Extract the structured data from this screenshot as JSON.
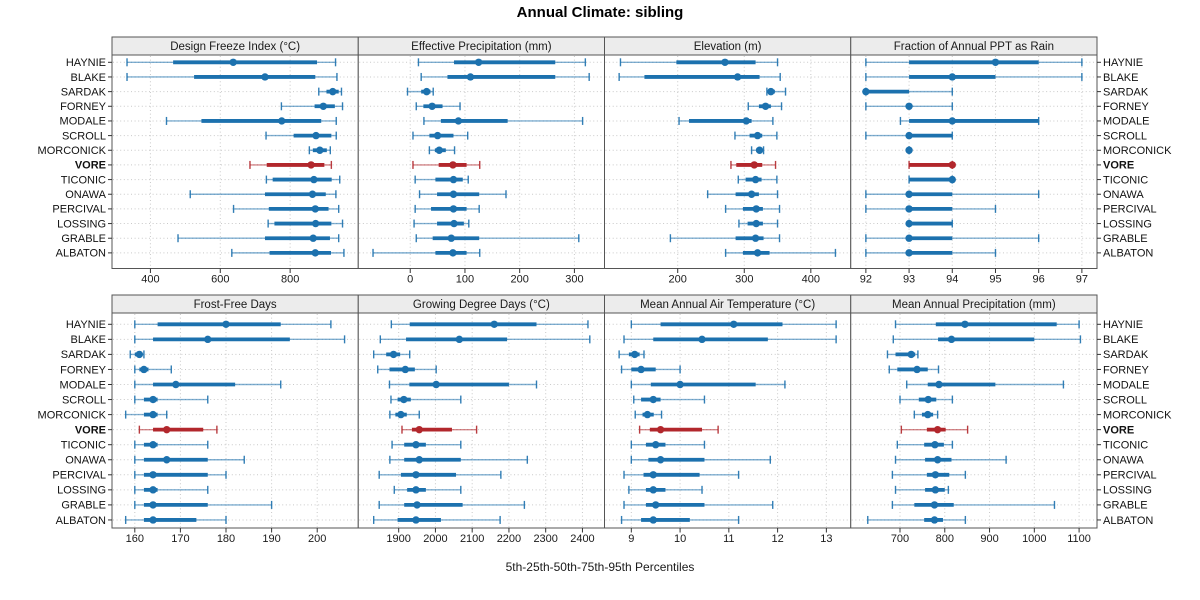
{
  "chart_data": {
    "type": "percentile-dotplot",
    "title": "Annual Climate: sibling",
    "caption": "5th-25th-50th-75th-95th Percentiles",
    "percentiles_shown": [
      5,
      25,
      50,
      75,
      95
    ],
    "sites": [
      "HAYNIE",
      "BLAKE",
      "SARDAK",
      "FORNEY",
      "MODALE",
      "SCROLL",
      "MORCONICK",
      "VORE",
      "TICONIC",
      "ONAWA",
      "PERCIVAL",
      "LOSSING",
      "GRABLE",
      "ALBATON"
    ],
    "highlight_site": "VORE",
    "legend_position": "none",
    "grid": "dotted",
    "colors": {
      "series": "#1c71ae",
      "highlight": "#b2272c",
      "strip_bg": "#ececec",
      "grid": "#c9c9c9",
      "border": "#555555",
      "text": "#1a1a1a"
    },
    "panels": [
      {
        "title": "Design Freeze Index (°C)",
        "row": 0,
        "col": 0,
        "xlim": [
          290,
          995
        ],
        "ticks": [
          400,
          600,
          800
        ],
        "values": [
          [
            333,
            465,
            637,
            877,
            930
          ],
          [
            333,
            525,
            728,
            872,
            934
          ],
          [
            882,
            904,
            922,
            939,
            947
          ],
          [
            775,
            870,
            895,
            928,
            950
          ],
          [
            446,
            546,
            776,
            889,
            932
          ],
          [
            731,
            810,
            874,
            918,
            932
          ],
          [
            855,
            865,
            885,
            905,
            915
          ],
          [
            685,
            733,
            860,
            898,
            918
          ],
          [
            732,
            750,
            868,
            919,
            942
          ],
          [
            514,
            728,
            864,
            902,
            931
          ],
          [
            638,
            739,
            872,
            910,
            939
          ],
          [
            737,
            755,
            873,
            918,
            950
          ],
          [
            479,
            728,
            866,
            914,
            939
          ],
          [
            633,
            741,
            872,
            917,
            954
          ]
        ]
      },
      {
        "title": "Effective Precipitation (mm)",
        "row": 0,
        "col": 1,
        "xlim": [
          -95,
          355
        ],
        "ticks": [
          0,
          100,
          200,
          300
        ],
        "values": [
          [
            15,
            80,
            125,
            265,
            320
          ],
          [
            20,
            68,
            110,
            265,
            327
          ],
          [
            -5,
            20,
            30,
            37,
            42
          ],
          [
            11,
            24,
            40,
            59,
            91
          ],
          [
            25,
            56,
            88,
            178,
            315
          ],
          [
            5,
            35,
            50,
            79,
            105
          ],
          [
            35,
            45,
            53,
            65,
            81
          ],
          [
            5,
            52,
            78,
            103,
            127
          ],
          [
            9,
            46,
            79,
            96,
            106
          ],
          [
            17,
            49,
            79,
            126,
            175
          ],
          [
            9,
            38,
            79,
            103,
            126
          ],
          [
            7,
            49,
            80,
            98,
            107
          ],
          [
            11,
            41,
            75,
            126,
            308
          ],
          [
            -68,
            46,
            78,
            103,
            127
          ]
        ]
      },
      {
        "title": "Elevation (m)",
        "row": 0,
        "col": 2,
        "xlim": [
          90,
          460
        ],
        "ticks": [
          200,
          300,
          400
        ],
        "values": [
          [
            114,
            198,
            271,
            317,
            350
          ],
          [
            112,
            150,
            290,
            323,
            354
          ],
          [
            334,
            337,
            340,
            346,
            362
          ],
          [
            306,
            322,
            332,
            340,
            356
          ],
          [
            202,
            217,
            303,
            311,
            343
          ],
          [
            286,
            308,
            320,
            327,
            349
          ],
          [
            311,
            318,
            323,
            326,
            329
          ],
          [
            280,
            288,
            315,
            327,
            347
          ],
          [
            291,
            302,
            317,
            326,
            349
          ],
          [
            245,
            287,
            311,
            322,
            350
          ],
          [
            272,
            298,
            318,
            328,
            353
          ],
          [
            292,
            305,
            318,
            328,
            350
          ],
          [
            189,
            287,
            317,
            329,
            353
          ],
          [
            272,
            298,
            320,
            338,
            437
          ]
        ]
      },
      {
        "title": "Fraction of Annual PPT as Rain",
        "row": 0,
        "col": 3,
        "xlim": [
          91.65,
          97.35
        ],
        "ticks": [
          92,
          93,
          94,
          95,
          96,
          97
        ],
        "values": [
          [
            92,
            93,
            95,
            96,
            97
          ],
          [
            92,
            93,
            94,
            95,
            97
          ],
          [
            92,
            92,
            92,
            93,
            94
          ],
          [
            92,
            93,
            93,
            93,
            94
          ],
          [
            92.8,
            93,
            94,
            96,
            96
          ],
          [
            92,
            93,
            93,
            94,
            94
          ],
          [
            93,
            93,
            93,
            93,
            93
          ],
          [
            93,
            93,
            94,
            94,
            94
          ],
          [
            93,
            93,
            94,
            94,
            94
          ],
          [
            92,
            93,
            93,
            94,
            96
          ],
          [
            92,
            93,
            93,
            94,
            95
          ],
          [
            93,
            93,
            93,
            94,
            94
          ],
          [
            92,
            93,
            93,
            94,
            96
          ],
          [
            92,
            93,
            93,
            94,
            95
          ]
        ]
      },
      {
        "title": "Frost-Free Days",
        "row": 1,
        "col": 0,
        "xlim": [
          155,
          209
        ],
        "ticks": [
          160,
          170,
          180,
          190,
          200
        ],
        "values": [
          [
            160,
            165,
            180,
            192,
            203
          ],
          [
            160,
            164,
            176,
            194,
            206
          ],
          [
            159,
            160,
            161,
            161.5,
            162
          ],
          [
            160,
            161,
            162,
            163,
            168
          ],
          [
            160,
            164,
            169,
            182,
            192
          ],
          [
            160,
            162,
            164,
            165,
            176
          ],
          [
            158,
            162,
            164,
            165,
            167
          ],
          [
            161,
            164,
            167,
            175,
            178
          ],
          [
            160,
            162,
            164,
            165,
            176
          ],
          [
            160,
            162,
            167,
            176,
            184
          ],
          [
            160,
            162,
            164,
            176,
            180
          ],
          [
            160,
            162,
            164,
            165,
            176
          ],
          [
            160,
            162,
            164,
            176,
            190
          ],
          [
            158,
            162,
            164,
            173.5,
            180
          ]
        ]
      },
      {
        "title": "Growing Degree Days (°C)",
        "row": 1,
        "col": 1,
        "xlim": [
          1790,
          2460
        ],
        "ticks": [
          1900,
          2000,
          2100,
          2200,
          2300,
          2400
        ],
        "values": [
          [
            1880,
            1930,
            2160,
            2275,
            2415
          ],
          [
            1850,
            1920,
            2065,
            2195,
            2420
          ],
          [
            1832,
            1866,
            1886,
            1904,
            1930
          ],
          [
            1843,
            1875,
            1918,
            1944,
            2002
          ],
          [
            1875,
            1929,
            2002,
            2200,
            2275
          ],
          [
            1879,
            1897,
            1914,
            1933,
            2069
          ],
          [
            1876,
            1891,
            1906,
            1922,
            1956
          ],
          [
            1909,
            1936,
            1956,
            2045,
            2112
          ],
          [
            1882,
            1915,
            1947,
            1974,
            2069
          ],
          [
            1876,
            1915,
            1956,
            2069,
            2250
          ],
          [
            1847,
            1906,
            1947,
            2056,
            2178
          ],
          [
            1888,
            1923,
            1947,
            1974,
            2069
          ],
          [
            1847,
            1915,
            1950,
            2074,
            2242
          ],
          [
            1832,
            1897,
            1947,
            2015,
            2176
          ]
        ]
      },
      {
        "title": "Mean Annual Air Temperature (°C)",
        "row": 1,
        "col": 2,
        "xlim": [
          8.45,
          13.5
        ],
        "ticks": [
          9,
          10,
          11,
          12,
          13
        ],
        "values": [
          [
            9.0,
            9.6,
            11.1,
            12.1,
            13.2
          ],
          [
            8.85,
            9.45,
            10.45,
            11.8,
            13.2
          ],
          [
            8.75,
            8.95,
            9.07,
            9.17,
            9.26
          ],
          [
            8.8,
            9.0,
            9.2,
            9.5,
            10.0
          ],
          [
            9.0,
            9.4,
            10.0,
            11.55,
            12.15
          ],
          [
            9.05,
            9.2,
            9.45,
            9.6,
            10.5
          ],
          [
            9.08,
            9.23,
            9.33,
            9.46,
            9.62
          ],
          [
            9.17,
            9.38,
            9.6,
            10.45,
            10.78
          ],
          [
            9.0,
            9.3,
            9.5,
            9.7,
            10.5
          ],
          [
            9.0,
            9.35,
            9.6,
            10.5,
            11.85
          ],
          [
            8.85,
            9.25,
            9.45,
            10.4,
            11.2
          ],
          [
            8.95,
            9.3,
            9.45,
            9.7,
            10.45
          ],
          [
            8.85,
            9.3,
            9.5,
            10.5,
            11.9
          ],
          [
            8.8,
            9.2,
            9.45,
            10.2,
            11.2
          ]
        ]
      },
      {
        "title": "Mean Annual Precipitation (mm)",
        "row": 1,
        "col": 3,
        "xlim": [
          590,
          1140
        ],
        "ticks": [
          700,
          800,
          900,
          1000,
          1100
        ],
        "values": [
          [
            690,
            780,
            845,
            1050,
            1100
          ],
          [
            685,
            785,
            815,
            1000,
            1103
          ],
          [
            672,
            690,
            725,
            734,
            740
          ],
          [
            676,
            694,
            738,
            762,
            786
          ],
          [
            715,
            762,
            787,
            913,
            1065
          ],
          [
            700,
            742,
            763,
            781,
            817
          ],
          [
            732,
            749,
            762,
            774,
            784
          ],
          [
            703,
            760,
            784,
            802,
            851
          ],
          [
            694,
            754,
            778,
            798,
            817
          ],
          [
            690,
            756,
            784,
            815,
            937
          ],
          [
            683,
            760,
            779,
            810,
            846
          ],
          [
            690,
            756,
            779,
            800,
            808
          ],
          [
            683,
            732,
            777,
            820,
            1045
          ],
          [
            628,
            754,
            777,
            796,
            846
          ]
        ]
      }
    ]
  }
}
